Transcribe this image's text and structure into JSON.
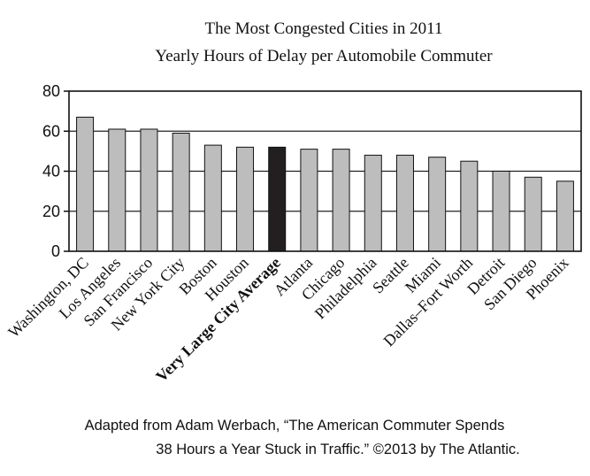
{
  "chart_data": {
    "type": "bar",
    "title": "The Most Congested Cities in 2011",
    "subtitle": "Yearly Hours of Delay per Automobile Commuter",
    "xlabel": "",
    "ylabel": "",
    "ylim": [
      0,
      80
    ],
    "yticks": [
      "0",
      "20",
      "40",
      "60",
      "80"
    ],
    "grid": true,
    "legend": "none",
    "categories": [
      "Washington, DC",
      "Los Angeles",
      "San Francisco",
      "New York City",
      "Boston",
      "Houston",
      "Very Large City Average",
      "Atlanta",
      "Chicago",
      "Philadelphia",
      "Seattle",
      "Miami",
      "Dallas–Fort Worth",
      "Detroit",
      "San Diego",
      "Phoenix"
    ],
    "values": [
      67,
      61,
      61,
      59,
      53,
      52,
      52,
      51,
      51,
      48,
      48,
      47,
      45,
      40,
      37,
      35
    ],
    "highlight_index": 6,
    "colors": {
      "bar": "#bdbdbd",
      "highlight": "#231f20",
      "stroke": "#111111",
      "grid": "#222222"
    }
  },
  "source": {
    "line1": "Adapted from Adam Werbach, “The American Commuter Spends",
    "line2": "38 Hours a Year Stuck in Traffic.” ©2013 by The Atlantic."
  }
}
